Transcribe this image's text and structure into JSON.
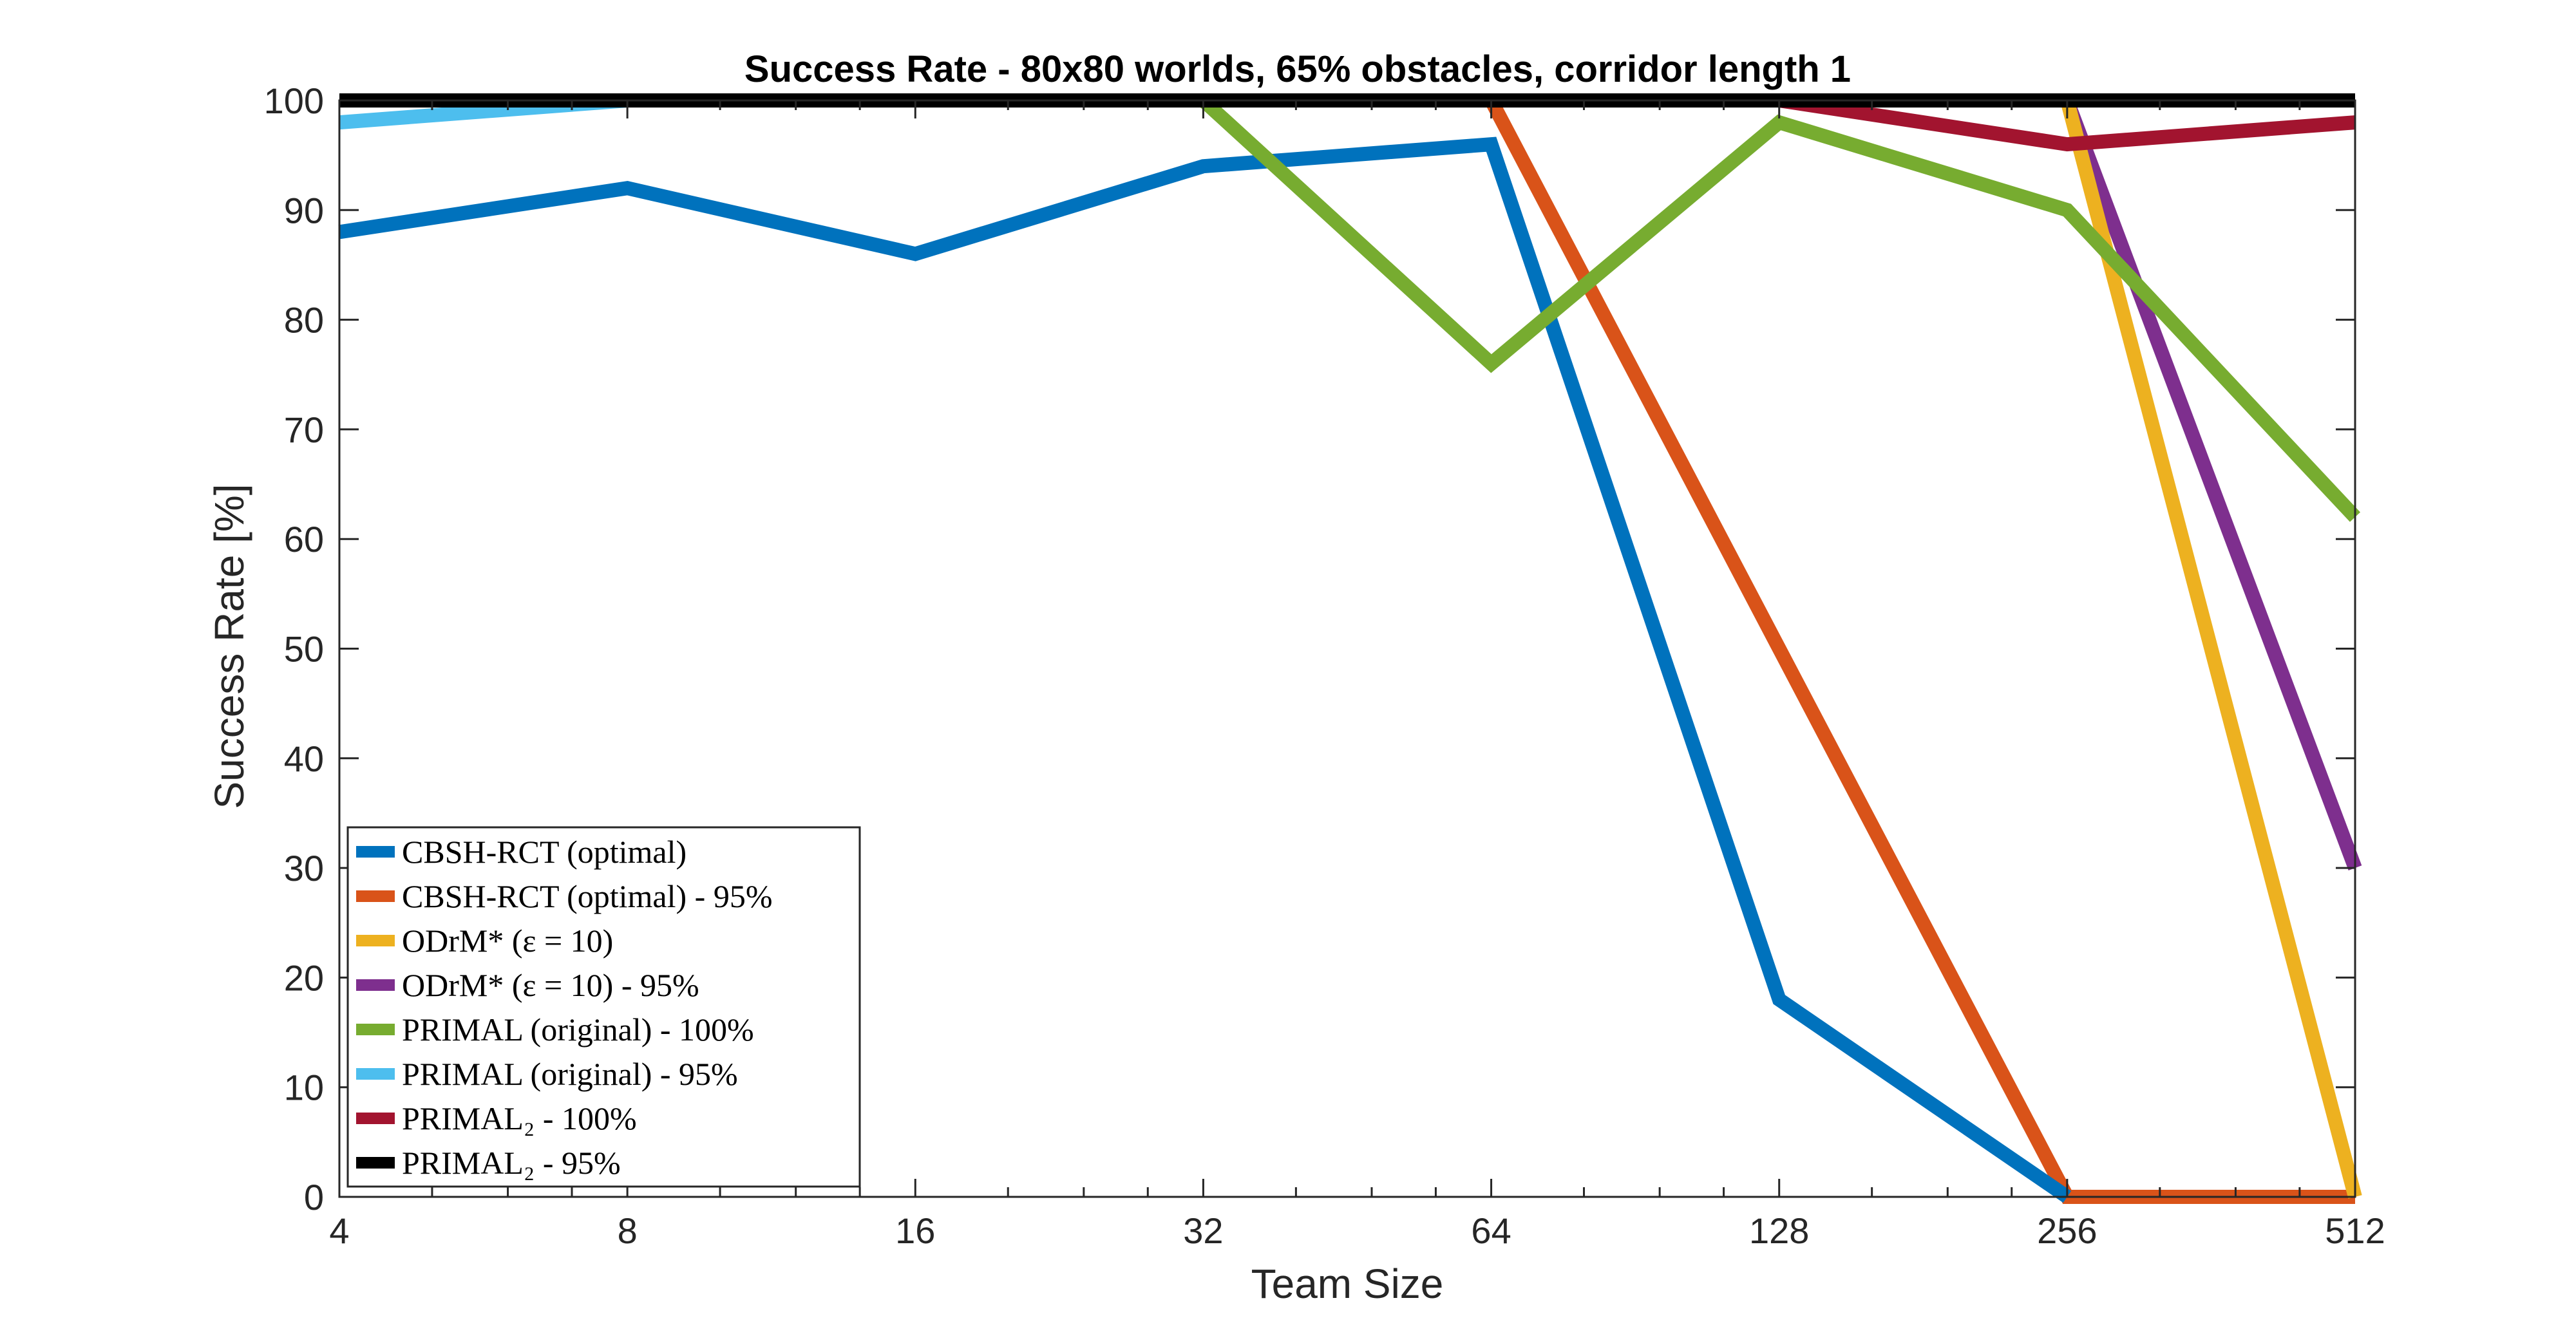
{
  "chart_data": {
    "type": "line",
    "title": "Success Rate - 80x80 worlds, 65% obstacles, corridor length 1",
    "xlabel": "Team Size",
    "ylabel": "Success Rate [%]",
    "x": [
      4,
      8,
      16,
      32,
      64,
      128,
      256,
      512
    ],
    "x_scale": "log2",
    "xlim": [
      4,
      512
    ],
    "ylim": [
      0,
      100
    ],
    "x_ticks": [
      "4",
      "8",
      "16",
      "32",
      "64",
      "128",
      "256",
      "512"
    ],
    "y_ticks": [
      "0",
      "10",
      "20",
      "30",
      "40",
      "50",
      "60",
      "70",
      "80",
      "90",
      "100"
    ],
    "grid": false,
    "legend_location": "bottom-left",
    "series": [
      {
        "name": "PRIMAL (original) - 95%",
        "color": "#4DBEEE",
        "values": [
          98,
          100,
          100,
          100,
          100,
          100,
          100,
          100
        ]
      },
      {
        "name": "CBSH-RCT (optimal) - 95%",
        "color": "#D95319",
        "values": [
          100,
          100,
          100,
          100,
          100,
          50,
          0,
          0
        ]
      },
      {
        "name": "ODrM* (ε = 10) - 95%",
        "color": "#7E2F8E",
        "values": [
          100,
          100,
          100,
          100,
          100,
          100,
          100,
          30
        ]
      },
      {
        "name": "ODrM* (ε = 10)",
        "color": "#EDB120",
        "values": [
          100,
          100,
          100,
          100,
          100,
          100,
          100,
          0
        ]
      },
      {
        "name": "CBSH-RCT (optimal)",
        "color": "#0072BD",
        "values": [
          88,
          92,
          86,
          94,
          96,
          18,
          0,
          null
        ]
      },
      {
        "name": "PRIMAL (original) - 100%",
        "color": "#77AC30",
        "values": [
          100,
          100,
          100,
          100,
          76,
          98,
          90,
          62
        ]
      },
      {
        "name": "PRIMAL₂ - 100%",
        "color": "#A2142F",
        "values": [
          100,
          100,
          100,
          100,
          100,
          100,
          96,
          98
        ]
      },
      {
        "name": "PRIMAL₂ - 95%",
        "color": "#000000",
        "values": [
          100,
          100,
          100,
          100,
          100,
          100,
          100,
          100
        ]
      }
    ],
    "legend_order": [
      4,
      1,
      3,
      2,
      5,
      0,
      6,
      7
    ]
  }
}
